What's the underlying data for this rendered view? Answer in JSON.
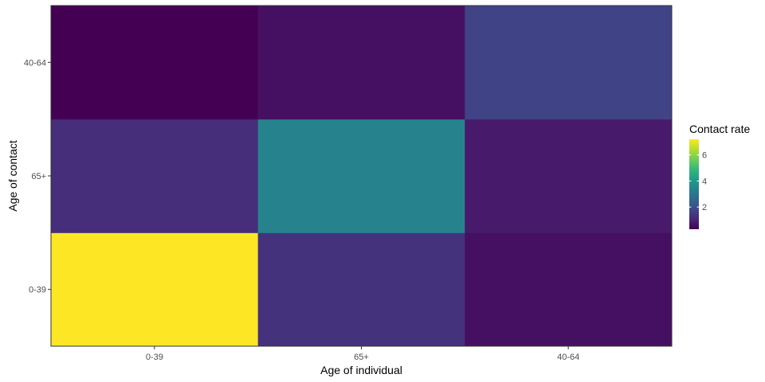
{
  "chart_data": {
    "type": "heatmap",
    "xlabel": "Age of individual",
    "ylabel": "Age of contact",
    "x_categories": [
      "0-39",
      "65+",
      "40-64"
    ],
    "y_categories": [
      "0-39",
      "65+",
      "40-64"
    ],
    "cells": [
      {
        "x": "0-39",
        "y": "0-39",
        "value": 7.2
      },
      {
        "x": "65+",
        "y": "0-39",
        "value": 1.3
      },
      {
        "x": "40-64",
        "y": "0-39",
        "value": 0.6
      },
      {
        "x": "0-39",
        "y": "65+",
        "value": 1.2
      },
      {
        "x": "65+",
        "y": "65+",
        "value": 3.4
      },
      {
        "x": "40-64",
        "y": "65+",
        "value": 0.8
      },
      {
        "x": "0-39",
        "y": "40-64",
        "value": 0.3
      },
      {
        "x": "65+",
        "y": "40-64",
        "value": 0.6
      },
      {
        "x": "40-64",
        "y": "40-64",
        "value": 1.7
      }
    ],
    "color_scale": {
      "name": "viridis",
      "min": 0.3,
      "max": 7.2,
      "stops": [
        "#440154",
        "#482878",
        "#3e4989",
        "#31688e",
        "#26828e",
        "#1f9e89",
        "#35b779",
        "#6ece58",
        "#b5de2b",
        "#fde725"
      ]
    },
    "legend": {
      "title": "Contact rate",
      "ticks": [
        2,
        4,
        6
      ],
      "placement": "right"
    },
    "grid": false
  }
}
